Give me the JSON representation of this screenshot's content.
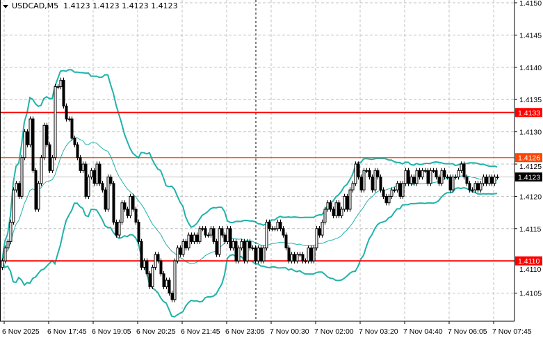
{
  "header": {
    "symbol": "USDCAD,M5",
    "ohlc": "1.4123 1.4123 1.4123 1.4123"
  },
  "colors": {
    "bull_body": "#ffffff",
    "bear_body": "#000000",
    "bands": "#20b2aa",
    "support_resistance": "#ff0000",
    "level_mid": "#ff4500",
    "current_price_bg": "#000000"
  },
  "chart_data": {
    "type": "candlestick",
    "title": "USDCAD,M5",
    "ylim": [
      1.41015,
      1.415
    ],
    "yticks": [
      "1.4150",
      "1.4145",
      "1.4140",
      "1.4135",
      "1.4130",
      "1.4125",
      "1.4120",
      "1.4115",
      "1.4110",
      "1.4105"
    ],
    "xticks": [
      "6 Nov 2025",
      "6 Nov 17:45",
      "6 Nov 19:05",
      "6 Nov 20:25",
      "6 Nov 21:45",
      "6 Nov 23:05",
      "7 Nov 00:30",
      "7 Nov 02:00",
      "7 Nov 03:20",
      "7 Nov 04:40",
      "7 Nov 06:05",
      "7 Nov 07:45"
    ],
    "grid": true,
    "indicator": "Bollinger Bands",
    "closes": [
      1.411,
      1.4112,
      1.4113,
      1.4116,
      1.4121,
      1.4122,
      1.412,
      1.4126,
      1.413,
      1.4128,
      1.4132,
      1.4124,
      1.4118,
      1.4122,
      1.4126,
      1.4131,
      1.4128,
      1.4124,
      1.4126,
      1.4137,
      1.4137,
      1.4138,
      1.4134,
      1.4132,
      1.4132,
      1.4129,
      1.4128,
      1.4126,
      1.4124,
      1.4125,
      1.412,
      1.4123,
      1.4124,
      1.4122,
      1.4125,
      1.4122,
      1.4121,
      1.4118,
      1.4123,
      1.4122,
      1.4116,
      1.4114,
      1.4116,
      1.4119,
      1.4118,
      1.4117,
      1.412,
      1.4118,
      1.4116,
      1.4113,
      1.4109,
      1.411,
      1.4108,
      1.4106,
      1.4109,
      1.4111,
      1.411,
      1.4108,
      1.4106,
      1.4107,
      1.4105,
      1.4104,
      1.411,
      1.4112,
      1.4111,
      1.4113,
      1.4112,
      1.4114,
      1.4113,
      1.4114,
      1.4113,
      1.4115,
      1.4115,
      1.4114,
      1.4114,
      1.4115,
      1.4113,
      1.4111,
      1.4115,
      1.4114,
      1.4113,
      1.4115,
      1.4112,
      1.4113,
      1.411,
      1.4112,
      1.4113,
      1.411,
      1.4113,
      1.4112,
      1.4112,
      1.411,
      1.4112,
      1.411,
      1.4112,
      1.4116,
      1.4115,
      1.4115,
      1.4115,
      1.4116,
      1.4115,
      1.4114,
      1.4112,
      1.411,
      1.4111,
      1.411,
      1.4111,
      1.4111,
      1.411,
      1.411,
      1.4112,
      1.411,
      1.4112,
      1.4115,
      1.4114,
      1.4116,
      1.4118,
      1.4119,
      1.4118,
      1.4117,
      1.4119,
      1.4117,
      1.4118,
      1.412,
      1.4118,
      1.4121,
      1.4122,
      1.4125,
      1.4123,
      1.4121,
      1.4124,
      1.4124,
      1.4123,
      1.4121,
      1.4124,
      1.4123,
      1.4121,
      1.412,
      1.4119,
      1.412,
      1.4121,
      1.4121,
      1.4122,
      1.412,
      1.4122,
      1.4124,
      1.4122,
      1.4123,
      1.4122,
      1.4124,
      1.4123,
      1.4124,
      1.4124,
      1.4122,
      1.4124,
      1.4124,
      1.4123,
      1.4122,
      1.4124,
      1.4123,
      1.4123,
      1.4121,
      1.4123,
      1.4123,
      1.4124,
      1.4125,
      1.4123,
      1.4122,
      1.4121,
      1.4121,
      1.4122,
      1.4121,
      1.4122,
      1.4123,
      1.4122,
      1.4123,
      1.4122,
      1.4123,
      1.4123
    ],
    "levels": [
      {
        "price": 1.4133,
        "label": "1.4133",
        "kind": "support_resistance"
      },
      {
        "price": 1.4126,
        "label": "1.4126",
        "kind": "level_mid"
      },
      {
        "price": 1.411,
        "label": "1.4110",
        "kind": "support_resistance"
      }
    ],
    "current_price": {
      "price": 1.4123,
      "label": "1.4123"
    }
  }
}
